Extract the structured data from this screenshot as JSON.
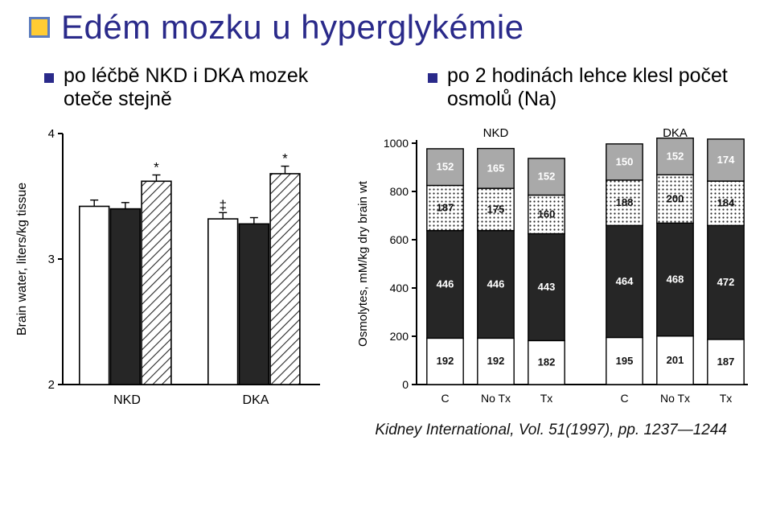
{
  "title": "Edém mozku u hyperglykémie",
  "bullets": {
    "left": "po léčbě NKD i DKA mozek oteče stejně",
    "right": "po 2 hodinách lehce klesl počet osmolů (Na)"
  },
  "colors": {
    "title": "#2a2a8a",
    "bullet_marker": "#2a2a8a",
    "title_marker_bg": "#ffcc33",
    "title_marker_border": "#5c7cbe",
    "axis": "#000000",
    "bar_stroke": "#000000",
    "bar_white": "#ffffff",
    "bar_black": "#262626",
    "hatch": "#262626",
    "seg_grey": "#a9a9a9",
    "seg_dotted": "#ffffff",
    "background": "#ffffff"
  },
  "chart1": {
    "type": "bar",
    "ylabel": "Brain water, liters/kg tissue",
    "ylim": [
      2,
      4
    ],
    "yticks": [
      2,
      3,
      4
    ],
    "group_labels": [
      "NKD",
      "DKA"
    ],
    "groups": [
      {
        "name": "NKD",
        "bars": [
          {
            "fill": "white",
            "value": 3.42,
            "err": 0.05
          },
          {
            "fill": "black",
            "value": 3.4,
            "err": 0.05
          },
          {
            "fill": "hatch",
            "value": 3.62,
            "err": 0.05,
            "mark": "*"
          }
        ]
      },
      {
        "name": "DKA",
        "bars": [
          {
            "fill": "white",
            "value": 3.32,
            "err": 0.05,
            "mark": "‡"
          },
          {
            "fill": "black",
            "value": 3.28,
            "err": 0.05
          },
          {
            "fill": "hatch",
            "value": 3.68,
            "err": 0.06,
            "mark": "*"
          }
        ]
      }
    ],
    "bar_width": 0.7,
    "font_label": 16,
    "font_tick": 15
  },
  "chart2": {
    "type": "stacked-bar",
    "ylabel": "Osmolytes, mM/kg dry brain wt",
    "ylim": [
      0,
      1000
    ],
    "yticks": [
      0,
      200,
      400,
      600,
      800,
      1000
    ],
    "group_headers": [
      "NKD",
      "DKA"
    ],
    "xlabels": [
      "C",
      "No Tx",
      "Tx",
      "C",
      "No Tx",
      "Tx"
    ],
    "bars": [
      {
        "segs": [
          192,
          446,
          187,
          152
        ]
      },
      {
        "segs": [
          192,
          446,
          175,
          165
        ]
      },
      {
        "segs": [
          182,
          443,
          160,
          152
        ]
      },
      {
        "segs": [
          195,
          464,
          188,
          150
        ]
      },
      {
        "segs": [
          201,
          468,
          200,
          152
        ]
      },
      {
        "segs": [
          187,
          472,
          184,
          174
        ]
      }
    ],
    "seg_styles": [
      "white",
      "black",
      "dotted",
      "grey"
    ],
    "bar_width": 0.72,
    "font_label": 15,
    "font_tick": 14,
    "font_value": 13
  },
  "citation": "Kidney International, Vol. 51(1997), pp. 1237—1244"
}
